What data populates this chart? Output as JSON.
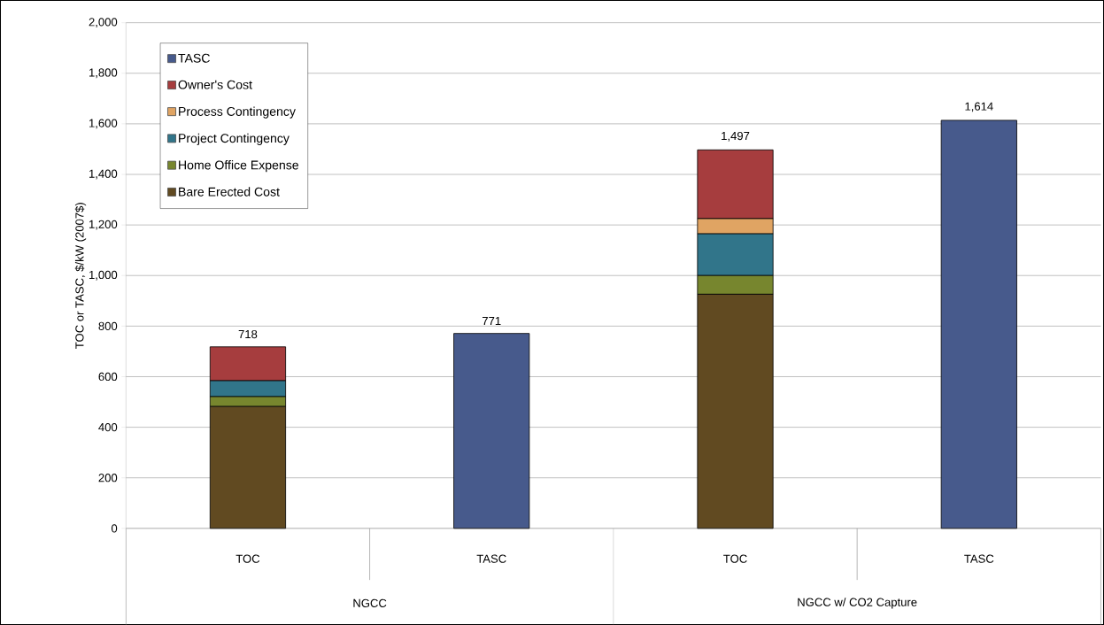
{
  "chart_data": {
    "type": "bar",
    "stacked": true,
    "ylabel": "TOC or TASC, $/kW (2007$)",
    "categories": [
      "TOC",
      "TASC",
      "TOC",
      "TASC"
    ],
    "annotations": [
      "NGCC",
      "NGCC w/ CO2 Capture"
    ],
    "series": [
      {
        "name": "Bare Erected Cost",
        "color": "#614a21",
        "values": [
          482,
          null,
          926,
          null
        ]
      },
      {
        "name": "Home Office Expense",
        "color": "#77862e",
        "values": [
          39,
          null,
          74,
          null
        ]
      },
      {
        "name": "Project Contingency",
        "color": "#31758a",
        "values": [
          63,
          null,
          165,
          null
        ]
      },
      {
        "name": "Process Contingency",
        "color": "#e0a463",
        "values": [
          null,
          null,
          60,
          null
        ]
      },
      {
        "name": "Owner's Cost",
        "color": "#a63d3e",
        "values": [
          134,
          null,
          272,
          null
        ]
      },
      {
        "name": "TASC",
        "color": "#475a8c",
        "values": [
          null,
          771,
          null,
          1614
        ]
      }
    ],
    "totals": [
      "718",
      "771",
      "1,497",
      "1,614"
    ],
    "ylim": [
      0,
      2000
    ],
    "yticks": [
      0,
      200,
      400,
      600,
      800,
      {
        "value": 1000,
        "label": "1,000"
      },
      {
        "value": 1200,
        "label": "1,200"
      },
      {
        "value": 1400,
        "label": "1,400"
      },
      {
        "value": 1600,
        "label": "1,600"
      },
      {
        "value": 1800,
        "label": "1,800"
      },
      {
        "value": 2000,
        "label": "2,000"
      }
    ],
    "grid": "y",
    "legend": "top left"
  }
}
